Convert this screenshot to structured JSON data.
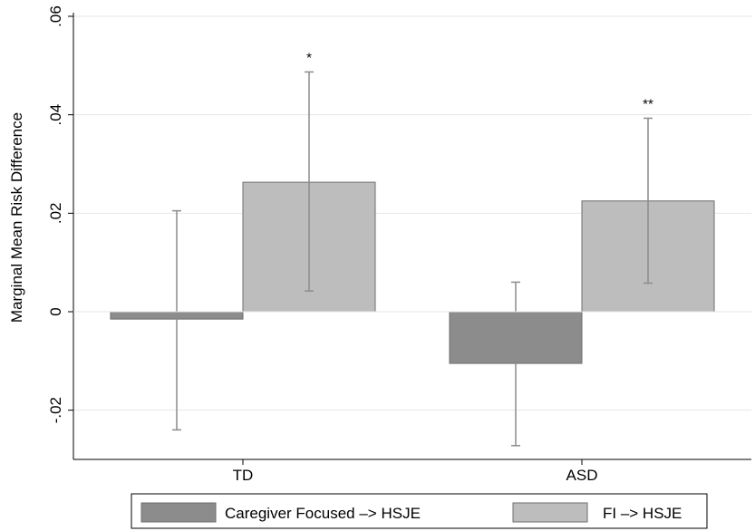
{
  "chart_data": {
    "type": "bar",
    "ylabel": "Marginal Mean Risk Difference",
    "xlabel": "",
    "title": "",
    "categories": [
      "TD",
      "ASD"
    ],
    "ylim": [
      -0.03,
      0.06
    ],
    "yticks": [
      {
        "value": -0.02,
        "label": "-.02"
      },
      {
        "value": 0,
        "label": "0"
      },
      {
        "value": 0.02,
        "label": ".02"
      },
      {
        "value": 0.04,
        "label": ".04"
      },
      {
        "value": 0.06,
        "label": ".06"
      }
    ],
    "grid": true,
    "legend_position": "bottom",
    "series": [
      {
        "name": "Caregiver Focused –> HSJE",
        "color": "#8c8c8c",
        "values": [
          -0.0015,
          -0.0105
        ],
        "ci_low": [
          -0.024,
          -0.0272
        ],
        "ci_high": [
          0.0205,
          0.006
        ],
        "significance": [
          "",
          ""
        ]
      },
      {
        "name": "FI –> HSJE",
        "color": "#bdbdbd",
        "values": [
          0.0263,
          0.0225
        ],
        "ci_low": [
          0.0042,
          0.0058
        ],
        "ci_high": [
          0.0487,
          0.0393
        ],
        "significance": [
          "*",
          "**"
        ]
      }
    ]
  }
}
